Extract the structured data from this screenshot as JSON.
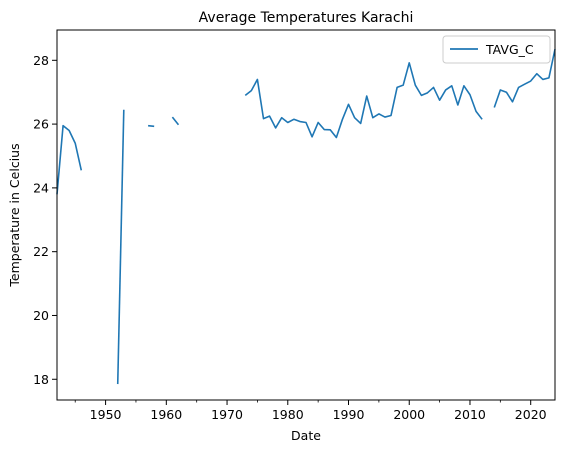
{
  "chart_data": {
    "type": "line",
    "title": "Average Temperatures Karachi",
    "xlabel": "Date",
    "ylabel": "Temperature in Celcius",
    "xlim": [
      1942,
      2024
    ],
    "ylim": [
      17.35,
      28.95
    ],
    "x_ticks": [
      "1950",
      "1960",
      "1970",
      "1980",
      "1990",
      "2000",
      "2010",
      "2020"
    ],
    "y_ticks": [
      "18",
      "20",
      "22",
      "24",
      "26",
      "28"
    ],
    "grid": false,
    "legend": "top-right",
    "colors": {
      "series": "#1f77b4"
    },
    "series": [
      {
        "name": "TAVG_C",
        "segments": [
          [
            [
              1942,
              23.8
            ],
            [
              1943,
              25.95
            ],
            [
              1944,
              25.8
            ],
            [
              1945,
              25.4
            ],
            [
              1946,
              24.55
            ]
          ],
          [
            [
              1952,
              17.85
            ],
            [
              1953,
              26.45
            ]
          ],
          [
            [
              1957,
              25.95
            ],
            [
              1958,
              25.93
            ]
          ],
          [
            [
              1961,
              26.22
            ],
            [
              1962,
              25.98
            ]
          ],
          [
            [
              1973,
              26.9
            ],
            [
              1974,
              27.05
            ],
            [
              1975,
              27.4
            ],
            [
              1976,
              26.17
            ],
            [
              1977,
              26.25
            ],
            [
              1978,
              25.88
            ],
            [
              1979,
              26.2
            ],
            [
              1980,
              26.05
            ],
            [
              1981,
              26.15
            ],
            [
              1982,
              26.08
            ],
            [
              1983,
              26.05
            ],
            [
              1984,
              25.6
            ],
            [
              1985,
              26.05
            ],
            [
              1986,
              25.83
            ],
            [
              1987,
              25.82
            ],
            [
              1988,
              25.58
            ],
            [
              1989,
              26.15
            ],
            [
              1990,
              26.62
            ],
            [
              1991,
              26.2
            ],
            [
              1992,
              26.02
            ],
            [
              1993,
              26.88
            ],
            [
              1994,
              26.2
            ],
            [
              1995,
              26.32
            ],
            [
              1996,
              26.22
            ],
            [
              1997,
              26.27
            ],
            [
              1998,
              27.15
            ],
            [
              1999,
              27.22
            ],
            [
              2000,
              27.92
            ],
            [
              2001,
              27.22
            ],
            [
              2002,
              26.9
            ],
            [
              2003,
              26.98
            ],
            [
              2004,
              27.15
            ],
            [
              2005,
              26.75
            ],
            [
              2006,
              27.07
            ],
            [
              2007,
              27.2
            ],
            [
              2008,
              26.6
            ],
            [
              2009,
              27.2
            ],
            [
              2010,
              26.92
            ],
            [
              2011,
              26.4
            ],
            [
              2012,
              26.15
            ]
          ],
          [
            [
              2014,
              26.52
            ],
            [
              2015,
              27.07
            ],
            [
              2016,
              27.0
            ],
            [
              2017,
              26.7
            ],
            [
              2018,
              27.15
            ],
            [
              2019,
              27.25
            ],
            [
              2020,
              27.35
            ],
            [
              2021,
              27.58
            ],
            [
              2022,
              27.4
            ],
            [
              2023,
              27.45
            ],
            [
              2024,
              28.35
            ]
          ]
        ]
      }
    ]
  }
}
